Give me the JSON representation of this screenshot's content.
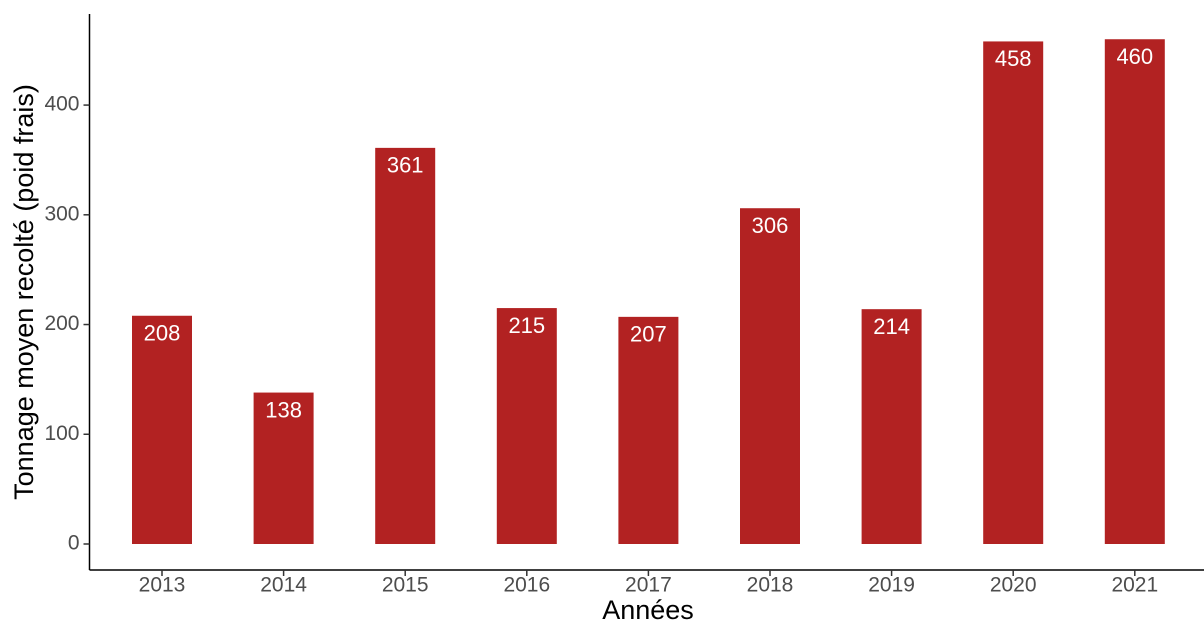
{
  "chart_data": {
    "type": "bar",
    "x_label": "Années",
    "y_label": "Tonnage moyen recolté (poid frais)",
    "categories": [
      "2013",
      "2014",
      "2015",
      "2016",
      "2017",
      "2018",
      "2019",
      "2020",
      "2021"
    ],
    "values": [
      208,
      138,
      361,
      215,
      207,
      306,
      214,
      458,
      460
    ],
    "color": "#b22222",
    "ylim": [
      -23.7,
      483
    ],
    "yticks": [
      0,
      100,
      200,
      300,
      400
    ],
    "grid": false
  }
}
